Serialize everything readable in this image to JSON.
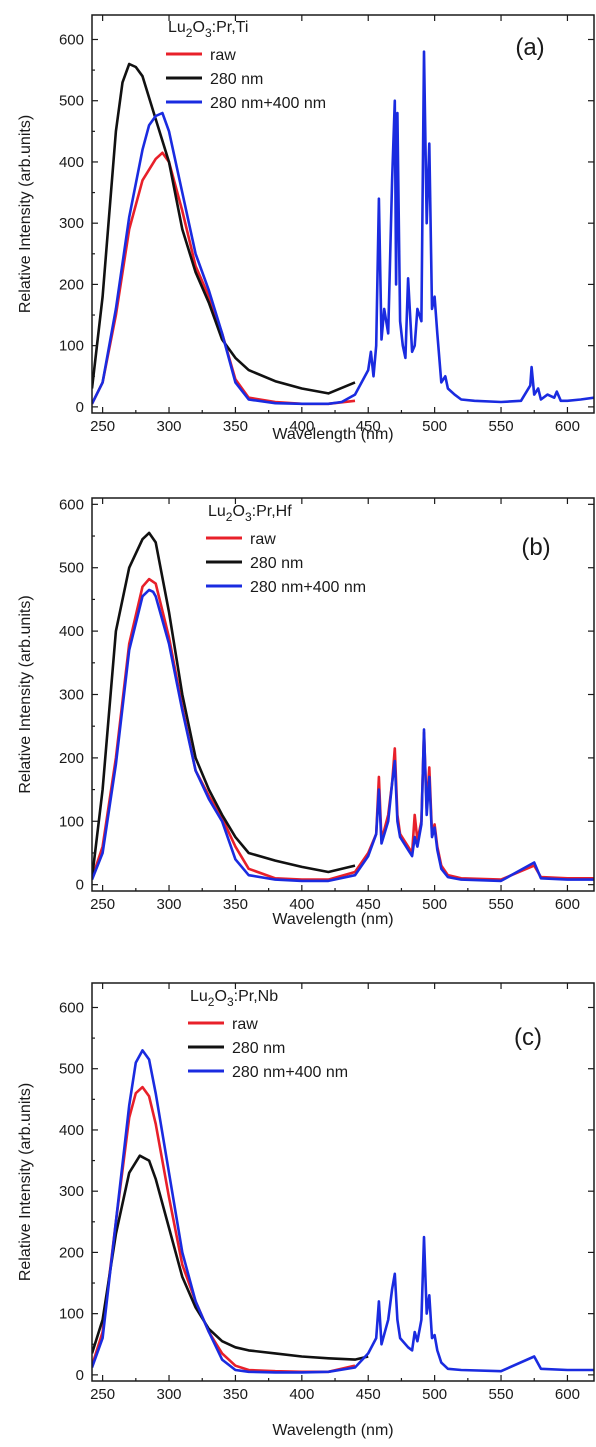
{
  "colors": {
    "raw": "#e8202a",
    "nm280": "#111111",
    "nm280_400": "#1a2be0",
    "axis": "#1a1a1a"
  },
  "chart_data": [
    {
      "type": "line",
      "panel_label": "(a)",
      "sample": "Lu2O3:Pr,Ti",
      "xlabel": "Wavelength (nm)",
      "ylabel": "Relative Intensity (arb.units)",
      "xlim": [
        242,
        620
      ],
      "ylim": [
        -10,
        640
      ],
      "xticks": [
        250,
        300,
        350,
        400,
        450,
        500,
        550,
        600
      ],
      "yticks": [
        0,
        100,
        200,
        300,
        400,
        500,
        600
      ],
      "series": [
        {
          "name": "raw",
          "color": "#e8202a",
          "x": [
            242,
            250,
            260,
            270,
            280,
            290,
            295,
            300,
            310,
            320,
            330,
            340,
            350,
            360,
            380,
            400,
            420,
            440
          ],
          "y": [
            5,
            40,
            150,
            290,
            370,
            405,
            415,
            400,
            320,
            230,
            180,
            120,
            45,
            15,
            8,
            5,
            5,
            10
          ]
        },
        {
          "name": "280 nm",
          "color": "#111111",
          "x": [
            242,
            250,
            260,
            265,
            270,
            275,
            280,
            290,
            300,
            310,
            320,
            330,
            340,
            350,
            360,
            380,
            400,
            420,
            440
          ],
          "y": [
            30,
            180,
            450,
            530,
            560,
            555,
            540,
            470,
            400,
            290,
            220,
            170,
            110,
            80,
            60,
            42,
            30,
            22,
            40
          ]
        },
        {
          "name": "280 nm+400 nm",
          "color": "#1a2be0",
          "x": [
            242,
            250,
            260,
            270,
            280,
            285,
            290,
            295,
            300,
            310,
            320,
            330,
            340,
            350,
            360,
            380,
            400,
            420,
            430,
            440,
            445,
            450,
            452,
            454,
            456,
            458,
            460,
            462,
            465,
            468,
            470,
            471,
            472,
            474,
            476,
            478,
            480,
            483,
            485,
            487,
            490,
            492,
            494,
            496,
            498,
            500,
            502,
            505,
            508,
            510,
            515,
            520,
            530,
            550,
            565,
            572,
            573,
            575,
            578,
            580,
            585,
            590,
            592,
            595,
            600,
            610,
            620
          ],
          "y": [
            5,
            40,
            160,
            310,
            420,
            460,
            475,
            480,
            450,
            350,
            250,
            190,
            120,
            40,
            12,
            6,
            5,
            5,
            8,
            20,
            40,
            60,
            90,
            50,
            100,
            340,
            110,
            160,
            120,
            370,
            500,
            200,
            480,
            140,
            100,
            80,
            210,
            90,
            100,
            160,
            140,
            580,
            300,
            430,
            160,
            180,
            120,
            40,
            50,
            30,
            20,
            12,
            10,
            8,
            10,
            35,
            65,
            20,
            30,
            12,
            20,
            15,
            25,
            10,
            10,
            12,
            15
          ]
        }
      ]
    },
    {
      "type": "line",
      "panel_label": "(b)",
      "sample": "Lu2O3:Pr,Hf",
      "xlabel": "Wavelength (nm)",
      "ylabel": "Relative Intensity (arb.units)",
      "xlim": [
        242,
        620
      ],
      "ylim": [
        -10,
        610
      ],
      "xticks": [
        250,
        300,
        350,
        400,
        450,
        500,
        550,
        600
      ],
      "yticks": [
        0,
        100,
        200,
        300,
        400,
        500,
        600
      ],
      "series": [
        {
          "name": "raw",
          "color": "#e8202a",
          "x": [
            242,
            250,
            260,
            270,
            280,
            285,
            290,
            300,
            310,
            320,
            330,
            340,
            350,
            360,
            380,
            400,
            420,
            440,
            450,
            456,
            458,
            460,
            465,
            468,
            470,
            472,
            474,
            480,
            483,
            485,
            487,
            490,
            492,
            494,
            496,
            498,
            500,
            502,
            505,
            510,
            520,
            550,
            575,
            580,
            600,
            620
          ],
          "y": [
            10,
            60,
            200,
            380,
            470,
            482,
            475,
            390,
            280,
            180,
            140,
            105,
            60,
            25,
            10,
            8,
            8,
            20,
            50,
            80,
            170,
            70,
            110,
            160,
            215,
            110,
            80,
            60,
            50,
            110,
            70,
            100,
            240,
            120,
            185,
            80,
            95,
            60,
            30,
            15,
            10,
            8,
            30,
            12,
            10,
            10
          ]
        },
        {
          "name": "280 nm",
          "color": "#111111",
          "x": [
            242,
            250,
            260,
            270,
            280,
            285,
            290,
            300,
            310,
            320,
            330,
            340,
            350,
            360,
            380,
            400,
            420,
            440
          ],
          "y": [
            10,
            150,
            400,
            500,
            545,
            555,
            540,
            430,
            300,
            200,
            150,
            110,
            75,
            50,
            38,
            28,
            20,
            30
          ]
        },
        {
          "name": "280 nm+400 nm",
          "color": "#1a2be0",
          "x": [
            242,
            250,
            260,
            270,
            280,
            285,
            288,
            290,
            300,
            310,
            320,
            330,
            340,
            350,
            360,
            380,
            400,
            420,
            440,
            450,
            456,
            458,
            460,
            465,
            468,
            470,
            472,
            474,
            480,
            483,
            485,
            487,
            490,
            492,
            494,
            496,
            498,
            500,
            502,
            505,
            510,
            520,
            550,
            575,
            580,
            600,
            620
          ],
          "y": [
            8,
            50,
            190,
            370,
            455,
            465,
            462,
            455,
            380,
            275,
            180,
            135,
            100,
            40,
            15,
            8,
            6,
            6,
            15,
            45,
            80,
            150,
            65,
            100,
            160,
            195,
            100,
            75,
            55,
            45,
            75,
            60,
            95,
            245,
            110,
            170,
            75,
            90,
            55,
            25,
            12,
            8,
            6,
            35,
            10,
            8,
            8
          ]
        }
      ]
    },
    {
      "type": "line",
      "panel_label": "(c)",
      "sample": "Lu2O3:Pr,Nb",
      "xlabel": "Wavelength (nm)",
      "ylabel": "Relative Intensity (arb.units)",
      "xlim": [
        242,
        620
      ],
      "ylim": [
        -10,
        640
      ],
      "xticks": [
        250,
        300,
        350,
        400,
        450,
        500,
        550,
        600
      ],
      "yticks": [
        0,
        100,
        200,
        300,
        400,
        500,
        600
      ],
      "series": [
        {
          "name": "raw",
          "color": "#e8202a",
          "x": [
            242,
            250,
            260,
            270,
            275,
            280,
            285,
            290,
            300,
            310,
            320,
            330,
            340,
            350,
            360,
            380,
            400,
            420,
            440
          ],
          "y": [
            15,
            70,
            250,
            420,
            460,
            470,
            455,
            410,
            290,
            180,
            120,
            70,
            35,
            15,
            8,
            6,
            5,
            5,
            15
          ]
        },
        {
          "name": "280 nm",
          "color": "#111111",
          "x": [
            242,
            250,
            260,
            270,
            278,
            285,
            290,
            300,
            310,
            320,
            330,
            340,
            350,
            360,
            380,
            400,
            420,
            440,
            450
          ],
          "y": [
            35,
            90,
            230,
            330,
            358,
            350,
            320,
            240,
            160,
            110,
            75,
            55,
            45,
            40,
            35,
            30,
            27,
            25,
            30
          ]
        },
        {
          "name": "280 nm+400 nm",
          "color": "#1a2be0",
          "x": [
            242,
            250,
            260,
            270,
            275,
            280,
            285,
            290,
            300,
            310,
            320,
            330,
            340,
            350,
            360,
            380,
            400,
            420,
            440,
            450,
            456,
            458,
            460,
            465,
            468,
            470,
            472,
            474,
            480,
            483,
            485,
            487,
            490,
            492,
            494,
            496,
            498,
            500,
            502,
            505,
            510,
            520,
            550,
            575,
            580,
            600,
            620
          ],
          "y": [
            12,
            60,
            250,
            440,
            510,
            530,
            515,
            460,
            330,
            200,
            120,
            70,
            25,
            8,
            5,
            4,
            4,
            5,
            12,
            35,
            60,
            120,
            50,
            90,
            140,
            165,
            90,
            60,
            45,
            40,
            70,
            55,
            90,
            225,
            100,
            130,
            60,
            65,
            40,
            20,
            10,
            8,
            6,
            30,
            10,
            8,
            8
          ]
        }
      ]
    }
  ]
}
